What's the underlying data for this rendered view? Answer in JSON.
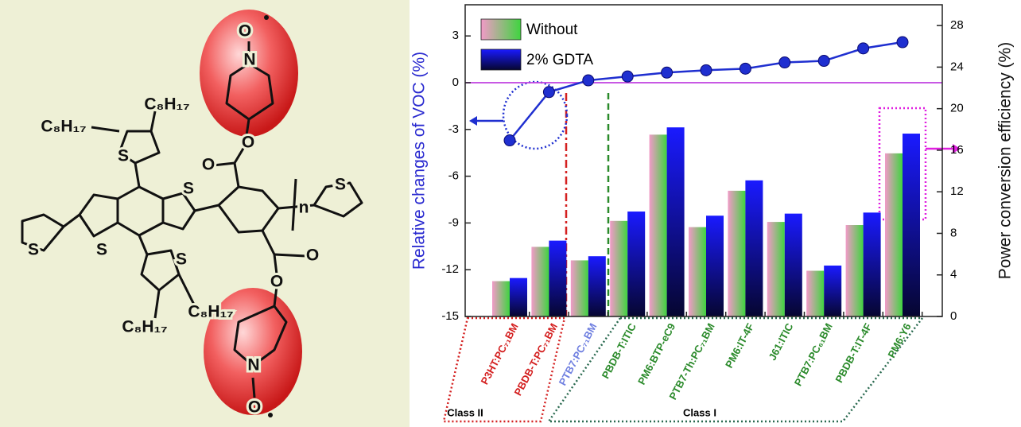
{
  "chart_data": {
    "type": "bar_line",
    "categories": [
      "P3HT:PC₇₁BM",
      "PBDB-T:PC₇₁BM",
      "PTB7:PC₇₁BM",
      "PBDB-T:ITIC",
      "PM6:BTP-eC9",
      "PTB7-Th:PC₇₁BM",
      "PM6:IT-4F",
      "J61:ITIC",
      "PTB7:PC₆₁BM",
      "PBDB-T:IT-4F",
      "PM6:Y6"
    ],
    "category_colors": [
      "#d42020",
      "#d42020",
      "#6f7fe0",
      "#2a8a2a",
      "#2a8a2a",
      "#2a8a2a",
      "#2a8a2a",
      "#2a8a2a",
      "#2a8a2a",
      "#2a8a2a",
      "#2a8a2a"
    ],
    "series": [
      {
        "name": "Without",
        "color": "#f29ac8",
        "axis": "y2",
        "values": [
          3.4,
          6.7,
          5.4,
          9.2,
          17.5,
          8.6,
          12.1,
          9.1,
          4.4,
          8.8,
          15.7
        ]
      },
      {
        "name": "2% GDTA",
        "color": "#1a1aff",
        "axis": "y2",
        "values": [
          3.7,
          7.3,
          5.8,
          10.1,
          18.2,
          9.7,
          13.1,
          9.9,
          4.9,
          10.0,
          17.6
        ]
      }
    ],
    "line_values": [
      -3.7,
      -0.6,
      0.15,
      0.4,
      0.65,
      0.8,
      0.9,
      1.3,
      1.4,
      2.2,
      2.6
    ],
    "line_color": "#1f2fd0",
    "y_label": "Relative changes of VOC (%)",
    "y2_label": "Power conversion efficiency (%)",
    "ylim": [
      -15,
      5
    ],
    "yticks": [
      -15,
      -12,
      -9,
      -6,
      -3,
      0,
      3
    ],
    "y2lim": [
      0,
      30
    ],
    "y2ticks": [
      0,
      4,
      8,
      12,
      16,
      20,
      24,
      28
    ],
    "groups": [
      "Class II",
      "Class I"
    ],
    "legend": "upper left"
  },
  "structure": {
    "labels": [
      "C₈H₁₇",
      "C₈H₁₇",
      "C₈H₁₇",
      "C₈H₁₇",
      "S",
      "S",
      "S",
      "S",
      "S",
      "S",
      "O",
      "O",
      "O",
      "O",
      "O",
      "O",
      "N",
      "N",
      "n"
    ]
  }
}
